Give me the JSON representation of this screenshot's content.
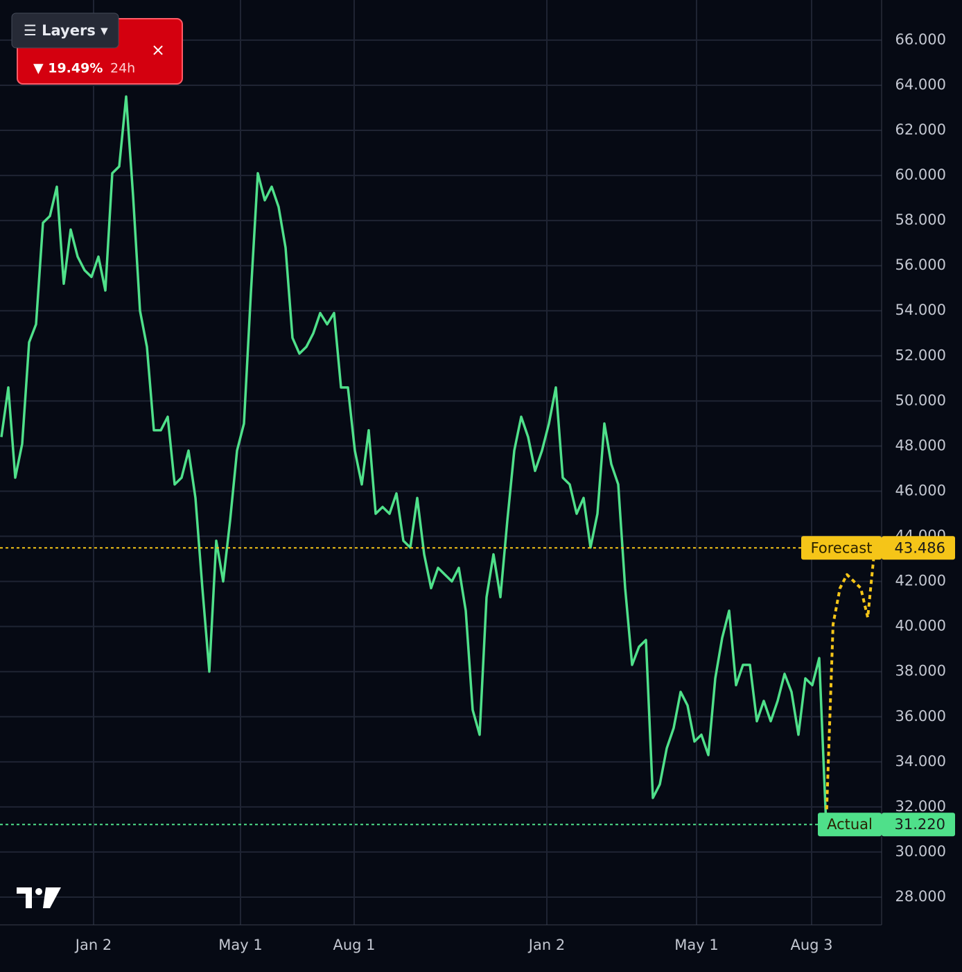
{
  "chart_data": {
    "type": "line",
    "series": [
      {
        "name": "Actual",
        "color": "#4fe08a",
        "values": [
          48.4,
          50.6,
          46.6,
          48.1,
          52.6,
          53.4,
          57.9,
          58.2,
          59.5,
          55.2,
          57.6,
          56.4,
          55.8,
          55.5,
          56.4,
          54.9,
          60.1,
          60.4,
          63.5,
          59.1,
          54,
          52.4,
          48.7,
          48.7,
          49.3,
          46.3,
          46.6,
          47.8,
          45.7,
          41.7,
          38,
          43.8,
          42,
          44.7,
          47.8,
          49,
          54.8,
          60.1,
          58.9,
          59.5,
          58.6,
          56.8,
          52.8,
          52.1,
          52.4,
          53,
          53.9,
          53.4,
          53.9,
          50.6,
          50.6,
          47.8,
          46.3,
          48.7,
          45,
          45.3,
          45,
          45.9,
          43.8,
          43.5,
          45.7,
          43.2,
          41.7,
          42.6,
          42.3,
          42,
          42.6,
          40.7,
          36.3,
          35.2,
          41.3,
          43.2,
          41.3,
          44.7,
          47.8,
          49.3,
          48.4,
          46.9,
          47.8,
          49,
          50.6,
          46.6,
          46.3,
          45,
          45.7,
          43.5,
          45,
          49,
          47.2,
          46.3,
          41.7,
          38.3,
          39.1,
          39.4,
          32.4,
          33,
          34.6,
          35.5,
          37.1,
          36.5,
          34.9,
          35.2,
          34.3,
          37.7,
          39.5,
          40.7,
          37.4,
          38.3,
          38.3,
          35.8,
          36.7,
          35.8,
          36.7,
          37.9,
          37.1,
          35.2,
          37.7,
          37.4,
          38.6,
          31.22,
          null,
          null,
          null,
          null,
          null,
          null,
          null
        ]
      },
      {
        "name": "Forecast",
        "color": "#f5c518",
        "values": [
          null,
          null,
          null,
          null,
          null,
          null,
          null,
          null,
          null,
          null,
          null,
          null,
          null,
          null,
          null,
          null,
          null,
          null,
          null,
          null,
          null,
          null,
          null,
          null,
          null,
          null,
          null,
          null,
          null,
          null,
          null,
          null,
          null,
          null,
          null,
          null,
          null,
          null,
          null,
          null,
          null,
          null,
          null,
          null,
          null,
          null,
          null,
          null,
          null,
          null,
          null,
          null,
          null,
          null,
          null,
          null,
          null,
          null,
          null,
          null,
          null,
          null,
          null,
          null,
          null,
          null,
          null,
          null,
          null,
          null,
          null,
          null,
          null,
          null,
          null,
          null,
          null,
          null,
          null,
          null,
          null,
          null,
          null,
          null,
          null,
          null,
          null,
          null,
          null,
          null,
          null,
          null,
          null,
          null,
          null,
          null,
          null,
          null,
          null,
          null,
          null,
          null,
          null,
          null,
          null,
          null,
          null,
          null,
          null,
          null,
          null,
          null,
          null,
          null,
          null,
          null,
          null,
          null,
          null,
          31.22,
          40.1,
          41.7,
          42.3,
          42,
          41.7,
          40.4,
          43.486
        ]
      }
    ],
    "price_lines": [
      {
        "name": "Forecast",
        "value": 43.486,
        "label": "43.486",
        "color": "#f5c518"
      },
      {
        "name": "Actual",
        "value": 31.22,
        "label": "31.220",
        "color": "#4fe08a"
      }
    ],
    "xlim": [
      -0.2,
      127.0
    ],
    "xticks": [
      {
        "value": 13.3,
        "label": "Jan 2"
      },
      {
        "value": 34.5,
        "label": "May 1"
      },
      {
        "value": 50.9,
        "label": "Aug 1"
      },
      {
        "value": 78.7,
        "label": "Jan 2"
      },
      {
        "value": 100.3,
        "label": "May 1"
      },
      {
        "value": 116.9,
        "label": "Aug 3"
      }
    ],
    "ylim": [
      26.77,
      67.78
    ],
    "yticks": [
      {
        "value": 28,
        "label": "28.000"
      },
      {
        "value": 30,
        "label": "30.000"
      },
      {
        "value": 32,
        "label": "32.000"
      },
      {
        "value": 34,
        "label": "34.000"
      },
      {
        "value": 36,
        "label": "36.000"
      },
      {
        "value": 38,
        "label": "38.000"
      },
      {
        "value": 40,
        "label": "40.000"
      },
      {
        "value": 42,
        "label": "42.000"
      },
      {
        "value": 44,
        "label": "44.000"
      },
      {
        "value": 46,
        "label": "46.000"
      },
      {
        "value": 48,
        "label": "48.000"
      },
      {
        "value": 50,
        "label": "50.000"
      },
      {
        "value": 52,
        "label": "52.000"
      },
      {
        "value": 54,
        "label": "54.000"
      },
      {
        "value": 56,
        "label": "56.000"
      },
      {
        "value": 58,
        "label": "58.000"
      },
      {
        "value": 60,
        "label": "60.000"
      },
      {
        "value": 62,
        "label": "62.000"
      },
      {
        "value": 64,
        "label": "64.000"
      },
      {
        "value": 66,
        "label": "66.000"
      }
    ],
    "grid": true
  },
  "widget": {
    "layers_button": "☰ Layers ▾",
    "change": "▼ 19.49%",
    "period": "24h",
    "close": "×"
  }
}
